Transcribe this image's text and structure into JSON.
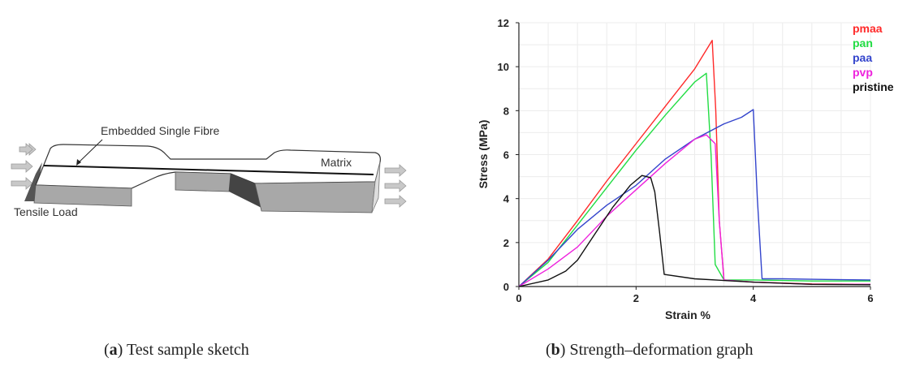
{
  "sketch": {
    "fibre_label": "Embedded Single Fibre",
    "matrix_label": "Matrix",
    "load_label": "Tensile Load"
  },
  "captions": {
    "a": {
      "letter": "a",
      "text": " Test sample sketch"
    },
    "b": {
      "letter": "b",
      "text": " Strength–deformation graph"
    }
  },
  "chart_data": {
    "type": "line",
    "title": "",
    "xlabel": "Strain %",
    "ylabel": "Stress (MPa)",
    "xlim": [
      0,
      6
    ],
    "ylim": [
      0,
      12
    ],
    "xticks": [
      0,
      2,
      4,
      6
    ],
    "yticks": [
      0,
      2,
      4,
      6,
      8,
      10,
      12
    ],
    "grid": true,
    "legend_position": "top-right",
    "series": [
      {
        "name": "pmaa",
        "color": "#ff2a2a",
        "x": [
          0,
          0.5,
          1.0,
          1.5,
          2.0,
          2.5,
          3.0,
          3.3,
          3.36,
          3.42,
          3.5,
          4.0,
          5.0,
          6.0
        ],
        "y": [
          0,
          1.25,
          3.0,
          4.8,
          6.5,
          8.2,
          9.9,
          11.2,
          8.0,
          3.0,
          0.3,
          0.2,
          0.12,
          0.1
        ]
      },
      {
        "name": "pan",
        "color": "#22dd44",
        "x": [
          0,
          0.5,
          1.0,
          1.5,
          2.0,
          2.5,
          3.0,
          3.2,
          3.28,
          3.35,
          3.5,
          4.0,
          5.0,
          6.0
        ],
        "y": [
          0,
          1.1,
          2.8,
          4.5,
          6.2,
          7.8,
          9.3,
          9.7,
          6.0,
          1.0,
          0.3,
          0.3,
          0.25,
          0.25
        ]
      },
      {
        "name": "paa",
        "color": "#3344cc",
        "x": [
          0,
          0.5,
          1.0,
          1.5,
          2.0,
          2.5,
          3.0,
          3.5,
          3.8,
          4.0,
          4.07,
          4.15,
          4.5,
          5.0,
          6.0
        ],
        "y": [
          0,
          1.2,
          2.6,
          3.7,
          4.6,
          5.8,
          6.7,
          7.4,
          7.7,
          8.05,
          4.0,
          0.35,
          0.35,
          0.33,
          0.3
        ]
      },
      {
        "name": "pvp",
        "color": "#ee22dd",
        "x": [
          0,
          0.5,
          1.0,
          1.5,
          2.0,
          2.5,
          3.0,
          3.2,
          3.35,
          3.42,
          3.5,
          4.0,
          5.0,
          6.0
        ],
        "y": [
          0,
          0.8,
          1.8,
          3.2,
          4.4,
          5.6,
          6.7,
          6.9,
          6.5,
          3.0,
          0.3,
          0.2,
          0.1,
          0.1
        ]
      },
      {
        "name": "pristine",
        "color": "#111111",
        "x": [
          0,
          0.5,
          0.8,
          1.0,
          1.3,
          1.6,
          1.9,
          2.1,
          2.25,
          2.32,
          2.4,
          2.48,
          3.0,
          4.0,
          5.0,
          6.0
        ],
        "y": [
          0,
          0.3,
          0.7,
          1.2,
          2.4,
          3.6,
          4.6,
          5.05,
          4.95,
          4.3,
          2.5,
          0.55,
          0.35,
          0.2,
          0.1,
          0.08
        ]
      }
    ]
  }
}
